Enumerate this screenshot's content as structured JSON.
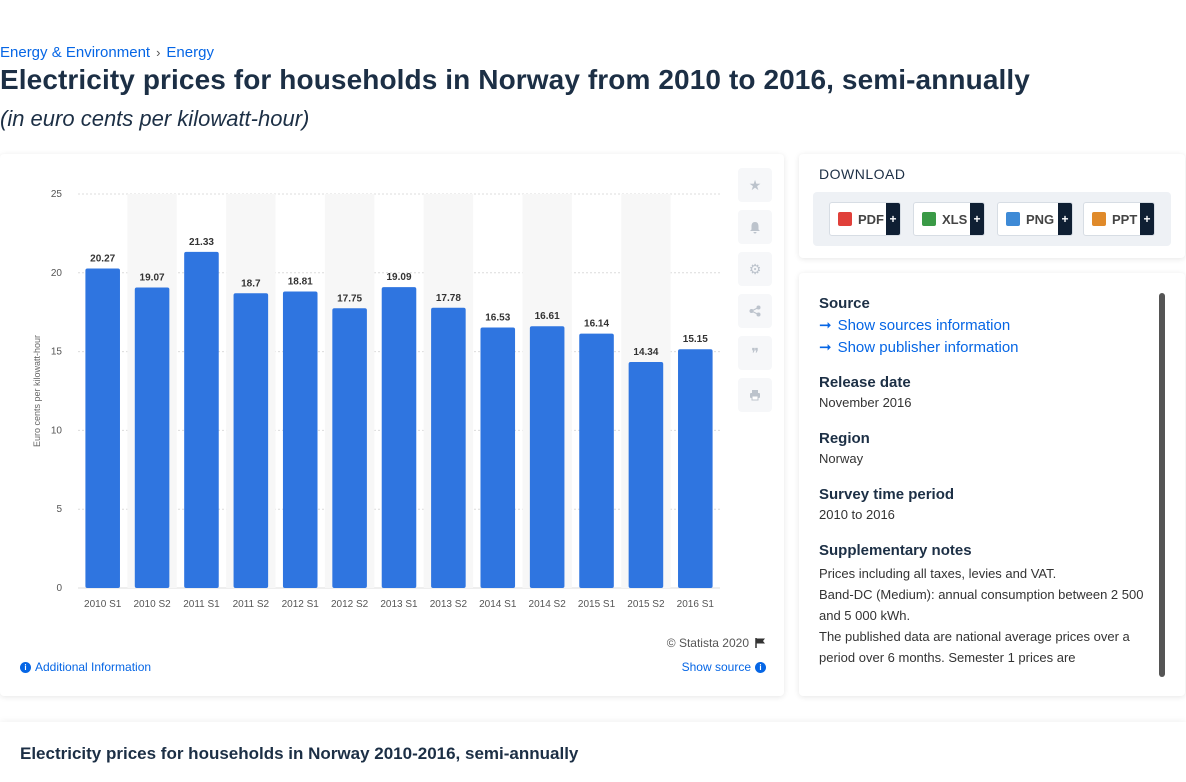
{
  "breadcrumb": {
    "items": [
      "Energy & Environment",
      "Energy"
    ],
    "separator": "›"
  },
  "page": {
    "title": "Electricity prices for households in Norway from 2010 to 2016, semi-annually",
    "subtitle": "(in euro cents per kilowatt-hour)"
  },
  "chart_data": {
    "type": "bar",
    "categories": [
      "2010 S1",
      "2010 S2",
      "2011 S1",
      "2011 S2",
      "2012 S1",
      "2012 S2",
      "2013 S1",
      "2013 S2",
      "2014 S1",
      "2014 S2",
      "2015 S1",
      "2015 S2",
      "2016 S1"
    ],
    "values": [
      20.27,
      19.07,
      21.33,
      18.7,
      18.81,
      17.75,
      19.09,
      17.78,
      16.53,
      16.61,
      16.14,
      14.34,
      15.15
    ],
    "value_labels": [
      "20.27",
      "19.07",
      "21.33",
      "18.7",
      "18.81",
      "17.75",
      "19.09",
      "17.78",
      "16.53",
      "16.61",
      "16.14",
      "14.34",
      "15.15"
    ],
    "ylabel": "Euro cents per kilowatt-hour",
    "ylim": [
      0,
      25
    ],
    "yticks": [
      "0",
      "5",
      "10",
      "15",
      "20",
      "25"
    ],
    "bar_color": "#2f75e0",
    "grid": true,
    "legend": "none"
  },
  "chart_footer": {
    "copyright": "© Statista 2020",
    "additional_info": "Additional Information",
    "show_source": "Show source"
  },
  "tools": [
    "star-icon",
    "bell-icon",
    "gear-icon",
    "share-icon",
    "quote-icon",
    "print-icon"
  ],
  "download": {
    "title": "DOWNLOAD",
    "buttons": [
      {
        "label": "PDF",
        "plus": "+",
        "color": "#e0403a"
      },
      {
        "label": "XLS",
        "plus": "+",
        "color": "#3a9a46"
      },
      {
        "label": "PNG",
        "plus": "+",
        "color": "#3e8ad6"
      },
      {
        "label": "PPT",
        "plus": "+",
        "color": "#e08a2a"
      }
    ]
  },
  "meta": {
    "source_head": "Source",
    "show_sources": "Show sources information",
    "show_publisher": "Show publisher information",
    "release_head": "Release date",
    "release_val": "November 2016",
    "region_head": "Region",
    "region_val": "Norway",
    "survey_head": "Survey time period",
    "survey_val": "2010 to 2016",
    "supp_head": "Supplementary notes",
    "supp_note_1": "Prices including all taxes, levies and VAT.",
    "supp_note_2": "Band-DC (Medium): annual consumption between 2 500 and 5 000 kWh.",
    "supp_note_3": "The published data are national average prices over a period over 6 months. Semester 1 prices are"
  },
  "bottom": {
    "title": "Electricity prices for households in Norway 2010-2016, semi-annually"
  }
}
